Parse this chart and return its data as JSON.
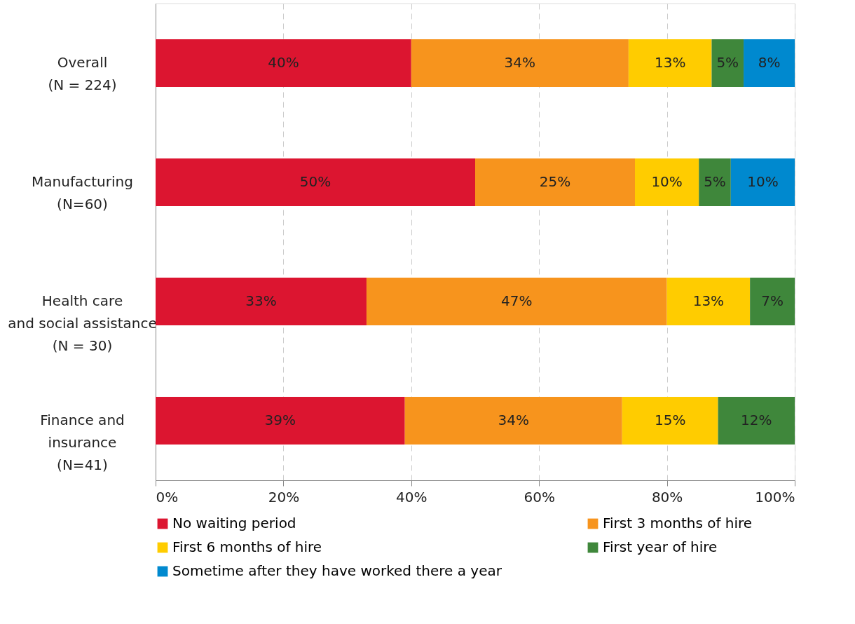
{
  "chart_data": {
    "type": "bar",
    "orientation": "horizontal",
    "stacked": true,
    "categories": [
      "Overall\n(N = 224)",
      "Manufacturing\n(N=60)",
      "Health care\nand social assistance\n(N = 30)",
      "Finance and\ninsurance\n(N=41)"
    ],
    "series": [
      {
        "name": "No waiting period",
        "color": "#dc1530",
        "values": [
          40,
          50,
          33,
          39
        ],
        "value_labels": [
          "40%",
          "50%",
          "33%",
          "39%"
        ]
      },
      {
        "name": "First 3 months of hire",
        "color": "#f7941d",
        "values": [
          34,
          25,
          47,
          34
        ],
        "value_labels": [
          "34%",
          "25%",
          "47%",
          "34%"
        ]
      },
      {
        "name": "First 6 months of hire",
        "color": "#ffcc00",
        "values": [
          13,
          10,
          13,
          15
        ],
        "value_labels": [
          "13%",
          "10%",
          "13%",
          "15%"
        ]
      },
      {
        "name": "First year of hire",
        "color": "#3f873b",
        "values": [
          5,
          5,
          7,
          12
        ],
        "value_labels": [
          "5%",
          "5%",
          "7%",
          "12%"
        ]
      },
      {
        "name": "Sometime after they have worked there a year",
        "color": "#0089cf",
        "values": [
          8,
          10,
          null,
          null
        ],
        "value_labels": [
          "8%",
          "10%",
          null,
          null
        ]
      }
    ],
    "xlim": [
      0,
      100
    ],
    "xticks": [
      {
        "value": 0,
        "label": "0%"
      },
      {
        "value": 20,
        "label": "20%"
      },
      {
        "value": 40,
        "label": "40%"
      },
      {
        "value": 60,
        "label": "60%"
      },
      {
        "value": 80,
        "label": "80%"
      },
      {
        "value": 100,
        "label": "100%"
      }
    ],
    "grid": "x",
    "legend": "bottom"
  }
}
